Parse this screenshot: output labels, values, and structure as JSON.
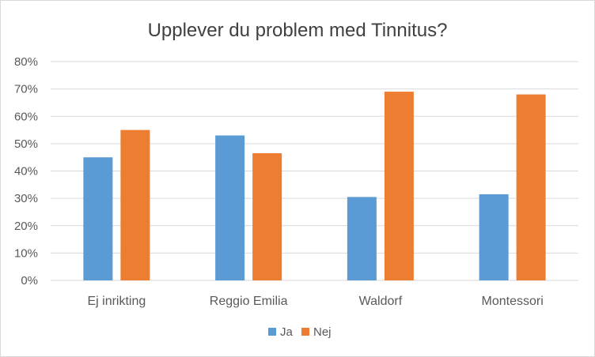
{
  "chart_data": {
    "type": "bar",
    "title": "Upplever du problem med Tinnitus?",
    "categories": [
      "Ej inrikting",
      "Reggio Emilia",
      "Waldorf",
      "Montessori"
    ],
    "series": [
      {
        "name": "Ja",
        "values": [
          45,
          53,
          30.5,
          31.5
        ],
        "color": "#5b9bd5"
      },
      {
        "name": "Nej",
        "values": [
          55,
          46.5,
          69,
          68
        ],
        "color": "#ed7d31"
      }
    ],
    "ylim": [
      0,
      80
    ],
    "yticks": [
      0,
      10,
      20,
      30,
      40,
      50,
      60,
      70,
      80
    ],
    "ytick_labels": [
      "0%",
      "10%",
      "20%",
      "30%",
      "40%",
      "50%",
      "60%",
      "70%",
      "80%"
    ],
    "grid": true,
    "legend": "bottom",
    "xlabel": "",
    "ylabel": ""
  }
}
